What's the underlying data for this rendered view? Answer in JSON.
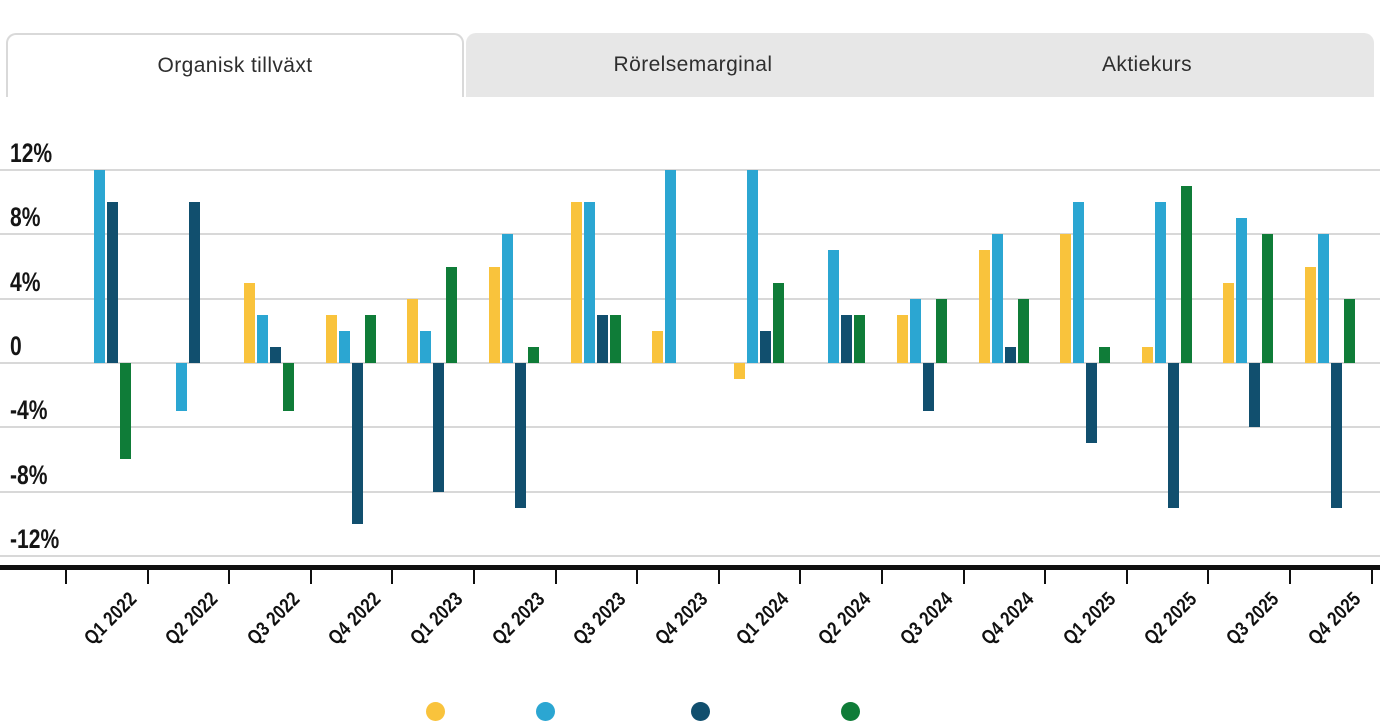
{
  "tabs": [
    {
      "label": "Organisk tillväxt",
      "active": true
    },
    {
      "label": "Rörelsemarginal",
      "active": false
    },
    {
      "label": "Aktiekurs",
      "active": false
    }
  ],
  "y_axis": {
    "tick_labels": [
      "12%",
      "8%",
      "4%",
      "0",
      "-4%",
      "-8%",
      "-12%"
    ],
    "tick_values": [
      12,
      8,
      4,
      0,
      -4,
      -8,
      -12
    ]
  },
  "chart_data": {
    "type": "bar",
    "title": "",
    "categories": [
      "Q1 2022",
      "Q2 2022",
      "Q3 2022",
      "Q4 2022",
      "Q1 2023",
      "Q2 2023",
      "Q3 2023",
      "Q4 2023",
      "Q1 2024",
      "Q2 2024",
      "Q3 2024",
      "Q4 2024",
      "Q1 2025",
      "Q2 2025",
      "Q3 2025",
      "Q4 2025"
    ],
    "series": [
      {
        "name": "series-yellow",
        "color": "#F9C33C",
        "values": [
          0,
          0,
          5,
          3,
          4,
          6,
          10,
          2,
          -1,
          0,
          3,
          7,
          8,
          1,
          5,
          6
        ]
      },
      {
        "name": "series-lightblue",
        "color": "#2BA6D2",
        "values": [
          12,
          -3,
          3,
          2,
          2,
          8,
          10,
          12,
          12,
          7,
          4,
          8,
          10,
          10,
          9,
          8
        ]
      },
      {
        "name": "series-darkblue",
        "color": "#114F6E",
        "values": [
          10,
          10,
          1,
          -10,
          -8,
          -9,
          3,
          0,
          2,
          3,
          -3,
          1,
          -5,
          -9,
          -4,
          -9
        ]
      },
      {
        "name": "series-green",
        "color": "#0F7C38",
        "values": [
          -6,
          0,
          -3,
          3,
          6,
          1,
          3,
          0,
          5,
          3,
          4,
          4,
          1,
          11,
          8,
          4
        ]
      }
    ],
    "ylim": [
      -12,
      12
    ],
    "y_tick_step": 4,
    "grid": true,
    "xlabel": "",
    "ylabel": "",
    "legend_position": "bottom-cut-off"
  },
  "legend": {
    "dots": [
      {
        "color": "#F9C33C"
      },
      {
        "color": "#2BA6D2"
      },
      {
        "color": "#114F6E"
      },
      {
        "color": "#0F7C38"
      }
    ]
  }
}
